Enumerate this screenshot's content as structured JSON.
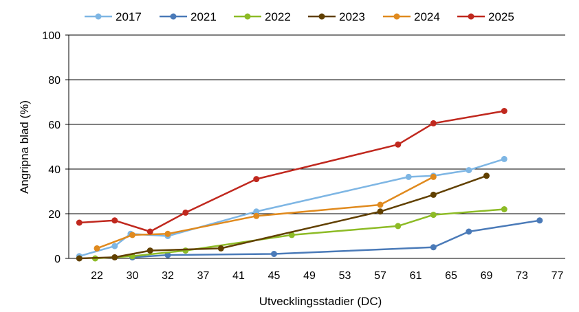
{
  "chart_data": {
    "type": "line",
    "title": "",
    "xlabel": "Utvecklingsstadier (DC)",
    "ylabel": "Angripna blad (%)",
    "ylim": [
      0,
      100
    ],
    "yticks": [
      0,
      20,
      40,
      60,
      80,
      100
    ],
    "categories": [
      "22",
      "30",
      "32",
      "37",
      "41",
      "45",
      "49",
      "53",
      "57",
      "61",
      "65",
      "69",
      "73",
      "77"
    ],
    "grid": "horizontal",
    "legend_position": "top",
    "series": [
      {
        "name": "2017",
        "color": "#7eb6e4",
        "points": [
          [
            -0.5,
            1
          ],
          [
            0.5,
            5.5
          ],
          [
            0.95,
            11
          ],
          [
            2.0,
            10
          ],
          [
            4.5,
            21
          ],
          [
            8.8,
            36.5
          ],
          [
            9.5,
            37
          ],
          [
            10.5,
            39.5
          ],
          [
            11.5,
            44.5
          ]
        ]
      },
      {
        "name": "2021",
        "color": "#4a7ab8",
        "points": [
          [
            1.0,
            0.5
          ],
          [
            2.0,
            1.5
          ],
          [
            5.0,
            2
          ],
          [
            9.5,
            5
          ],
          [
            10.5,
            12
          ],
          [
            12.5,
            17
          ]
        ]
      },
      {
        "name": "2022",
        "color": "#8dbb26",
        "points": [
          [
            -0.05,
            0
          ],
          [
            1.0,
            1
          ],
          [
            2.5,
            3.5
          ],
          [
            5.5,
            10.5
          ],
          [
            8.5,
            14.5
          ],
          [
            9.5,
            19.5
          ],
          [
            11.5,
            22
          ]
        ]
      },
      {
        "name": "2023",
        "color": "#614000",
        "points": [
          [
            -0.5,
            0
          ],
          [
            0.5,
            0.5
          ],
          [
            1.5,
            3.5
          ],
          [
            3.5,
            4.5
          ],
          [
            8.0,
            21
          ],
          [
            9.5,
            28.5
          ],
          [
            11.0,
            37
          ]
        ]
      },
      {
        "name": "2024",
        "color": "#e08a1e",
        "points": [
          [
            0.0,
            4.5
          ],
          [
            1.0,
            10.5
          ],
          [
            2.0,
            11
          ],
          [
            4.5,
            19
          ],
          [
            8.0,
            24
          ],
          [
            9.5,
            36.5
          ]
        ]
      },
      {
        "name": "2025",
        "color": "#c0281e",
        "points": [
          [
            -0.5,
            16
          ],
          [
            0.5,
            17
          ],
          [
            1.5,
            12
          ],
          [
            2.5,
            20.5
          ],
          [
            4.5,
            35.5
          ],
          [
            8.5,
            51
          ],
          [
            9.5,
            60.5
          ],
          [
            11.5,
            66
          ]
        ]
      }
    ]
  }
}
